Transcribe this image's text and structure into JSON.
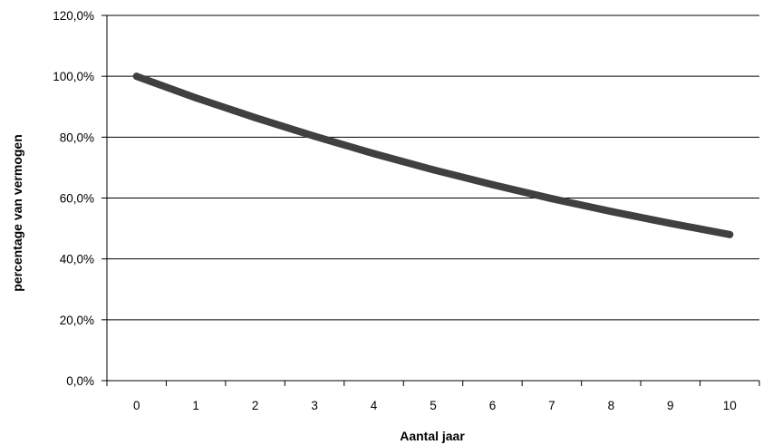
{
  "chart_data": {
    "type": "line",
    "title": "",
    "xlabel": "Aantal jaar",
    "ylabel": "percentage van vermogen",
    "categories": [
      "0",
      "1",
      "2",
      "3",
      "4",
      "5",
      "6",
      "7",
      "8",
      "9",
      "10"
    ],
    "series": [
      {
        "values": [
          100.0,
          92.9,
          86.4,
          80.3,
          74.6,
          69.3,
          64.4,
          59.8,
          55.6,
          51.7,
          48.0
        ]
      }
    ],
    "ylim": [
      0,
      120
    ],
    "y_ticks": [
      "0,0%",
      "20,0%",
      "40,0%",
      "60,0%",
      "80,0%",
      "100,0%",
      "120,0%"
    ],
    "grid": "horizontal",
    "legend": "none",
    "colors": {
      "line": "#404040",
      "grid": "#000000",
      "axis": "#000000"
    }
  }
}
